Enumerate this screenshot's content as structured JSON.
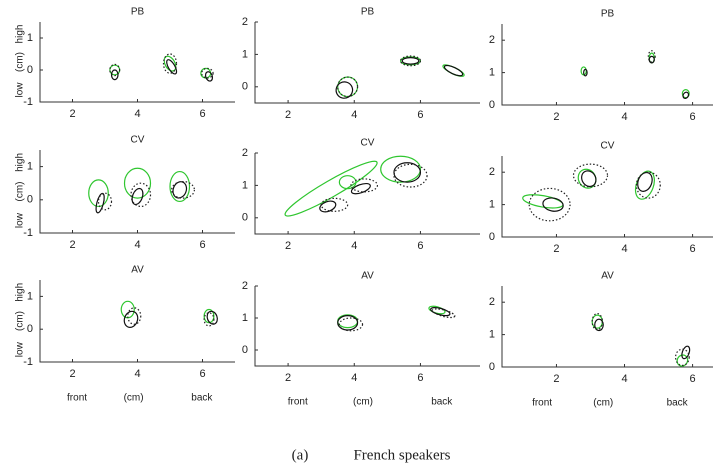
{
  "styles": {
    "green": {
      "color": "#2fc62f",
      "dash": "none"
    },
    "black": {
      "color": "#111111",
      "dash": "none"
    },
    "dotted": {
      "color": "#222222",
      "dash": "1.5 2"
    }
  },
  "caption": {
    "label": "(a)",
    "text": "French speakers"
  },
  "chart_data": [
    {
      "type": "ellipse",
      "title": "PB",
      "ylabel_parts": [
        "high",
        "(cm)",
        "low"
      ],
      "xlim": [
        1,
        7
      ],
      "ylim": [
        -1,
        1.5
      ],
      "xticks": [
        2,
        4,
        6
      ],
      "yticks": [
        -1,
        0,
        1
      ],
      "ellipses": [
        {
          "cx": 3.3,
          "cy": 0.0,
          "w": 0.3,
          "h": 0.3,
          "angle": 0,
          "style": "green"
        },
        {
          "cx": 3.3,
          "cy": -0.15,
          "w": 0.2,
          "h": 0.3,
          "angle": 0,
          "style": "black"
        },
        {
          "cx": 3.3,
          "cy": 0.0,
          "w": 0.3,
          "h": 0.35,
          "angle": 0,
          "style": "dotted"
        },
        {
          "cx": 5.0,
          "cy": 0.2,
          "w": 0.3,
          "h": 0.5,
          "angle": -30,
          "style": "green"
        },
        {
          "cx": 5.05,
          "cy": 0.1,
          "w": 0.2,
          "h": 0.5,
          "angle": -30,
          "style": "black"
        },
        {
          "cx": 5.0,
          "cy": 0.2,
          "w": 0.4,
          "h": 0.6,
          "angle": 0,
          "style": "dotted"
        },
        {
          "cx": 6.1,
          "cy": -0.1,
          "w": 0.3,
          "h": 0.3,
          "angle": 0,
          "style": "green"
        },
        {
          "cx": 6.2,
          "cy": -0.2,
          "w": 0.2,
          "h": 0.3,
          "angle": -20,
          "style": "black"
        },
        {
          "cx": 6.15,
          "cy": -0.1,
          "w": 0.35,
          "h": 0.3,
          "angle": 0,
          "style": "dotted"
        }
      ]
    },
    {
      "type": "ellipse",
      "title": "CV",
      "ylabel_parts": [
        "high",
        "(cm)",
        "low"
      ],
      "xlim": [
        1,
        7
      ],
      "ylim": [
        -1,
        1.5
      ],
      "xticks": [
        2,
        4,
        6
      ],
      "yticks": [
        -1,
        0,
        1
      ],
      "ellipses": [
        {
          "cx": 2.8,
          "cy": 0.2,
          "w": 0.6,
          "h": 0.8,
          "angle": 0,
          "style": "green"
        },
        {
          "cx": 2.85,
          "cy": -0.1,
          "w": 0.2,
          "h": 0.6,
          "angle": 15,
          "style": "black"
        },
        {
          "cx": 3.0,
          "cy": -0.05,
          "w": 0.4,
          "h": 0.5,
          "angle": 0,
          "style": "dotted"
        },
        {
          "cx": 4.0,
          "cy": 0.5,
          "w": 0.8,
          "h": 0.9,
          "angle": 0,
          "style": "green"
        },
        {
          "cx": 4.0,
          "cy": 0.1,
          "w": 0.3,
          "h": 0.5,
          "angle": 20,
          "style": "black"
        },
        {
          "cx": 4.1,
          "cy": 0.15,
          "w": 0.6,
          "h": 0.7,
          "angle": 0,
          "style": "dotted"
        },
        {
          "cx": 5.3,
          "cy": 0.4,
          "w": 0.6,
          "h": 0.9,
          "angle": 0,
          "style": "green"
        },
        {
          "cx": 5.3,
          "cy": 0.3,
          "w": 0.4,
          "h": 0.5,
          "angle": 20,
          "style": "black"
        },
        {
          "cx": 5.4,
          "cy": 0.3,
          "w": 0.7,
          "h": 0.5,
          "angle": 0,
          "style": "dotted"
        }
      ]
    },
    {
      "type": "ellipse",
      "title": "AV",
      "ylabel_parts": [
        "high",
        "(cm)",
        "low"
      ],
      "xlabel_parts": [
        "front",
        "(cm)",
        "back"
      ],
      "xlim": [
        1,
        7
      ],
      "ylim": [
        -1,
        1.5
      ],
      "xticks": [
        2,
        4,
        6
      ],
      "yticks": [
        -1,
        0,
        1
      ],
      "ellipses": [
        {
          "cx": 3.7,
          "cy": 0.6,
          "w": 0.4,
          "h": 0.5,
          "angle": 0,
          "style": "green"
        },
        {
          "cx": 3.8,
          "cy": 0.3,
          "w": 0.4,
          "h": 0.5,
          "angle": 20,
          "style": "black"
        },
        {
          "cx": 3.9,
          "cy": 0.4,
          "w": 0.4,
          "h": 0.5,
          "angle": 0,
          "style": "dotted"
        },
        {
          "cx": 6.2,
          "cy": 0.4,
          "w": 0.3,
          "h": 0.4,
          "angle": 0,
          "style": "green"
        },
        {
          "cx": 6.3,
          "cy": 0.35,
          "w": 0.3,
          "h": 0.4,
          "angle": -20,
          "style": "black"
        },
        {
          "cx": 6.2,
          "cy": 0.3,
          "w": 0.3,
          "h": 0.4,
          "angle": 0,
          "style": "dotted"
        }
      ]
    },
    {
      "type": "ellipse",
      "title": "PB",
      "xlim": [
        1,
        7.8
      ],
      "ylim": [
        -0.5,
        2
      ],
      "xticks": [
        2,
        4,
        6
      ],
      "yticks": [
        0,
        1,
        2
      ],
      "ellipses": [
        {
          "cx": 3.8,
          "cy": 0.0,
          "w": 0.6,
          "h": 0.6,
          "angle": -30,
          "style": "green"
        },
        {
          "cx": 3.7,
          "cy": -0.1,
          "w": 0.5,
          "h": 0.5,
          "angle": -30,
          "style": "black"
        },
        {
          "cx": 3.8,
          "cy": 0.0,
          "w": 0.6,
          "h": 0.6,
          "angle": 0,
          "style": "dotted"
        },
        {
          "cx": 5.7,
          "cy": 0.8,
          "w": 0.6,
          "h": 0.25,
          "angle": 0,
          "style": "green"
        },
        {
          "cx": 5.7,
          "cy": 0.8,
          "w": 0.5,
          "h": 0.2,
          "angle": 0,
          "style": "black"
        },
        {
          "cx": 5.7,
          "cy": 0.8,
          "w": 0.6,
          "h": 0.3,
          "angle": 0,
          "style": "dotted"
        },
        {
          "cx": 7.0,
          "cy": 0.5,
          "w": 0.7,
          "h": 0.2,
          "angle": 25,
          "style": "green"
        },
        {
          "cx": 7.0,
          "cy": 0.5,
          "w": 0.6,
          "h": 0.2,
          "angle": 25,
          "style": "black"
        }
      ]
    },
    {
      "type": "ellipse",
      "title": "CV",
      "xlim": [
        1,
        7.8
      ],
      "ylim": [
        -0.5,
        2
      ],
      "xticks": [
        2,
        4,
        6
      ],
      "yticks": [
        0,
        1,
        2
      ],
      "ellipses": [
        {
          "cx": 3.3,
          "cy": 0.9,
          "w": 3.2,
          "h": 0.5,
          "angle": -30,
          "style": "green"
        },
        {
          "cx": 3.8,
          "cy": 1.1,
          "w": 0.5,
          "h": 0.4,
          "angle": 0,
          "style": "green"
        },
        {
          "cx": 4.2,
          "cy": 0.9,
          "w": 0.6,
          "h": 0.25,
          "angle": -20,
          "style": "black"
        },
        {
          "cx": 4.3,
          "cy": 1.0,
          "w": 0.8,
          "h": 0.4,
          "angle": 0,
          "style": "dotted"
        },
        {
          "cx": 3.2,
          "cy": 0.35,
          "w": 0.5,
          "h": 0.3,
          "angle": -20,
          "style": "black"
        },
        {
          "cx": 3.4,
          "cy": 0.4,
          "w": 0.8,
          "h": 0.4,
          "angle": 0,
          "style": "dotted"
        },
        {
          "cx": 5.4,
          "cy": 1.5,
          "w": 1.2,
          "h": 0.8,
          "angle": 0,
          "style": "green"
        },
        {
          "cx": 5.6,
          "cy": 1.4,
          "w": 0.8,
          "h": 0.6,
          "angle": 0,
          "style": "black"
        },
        {
          "cx": 5.7,
          "cy": 1.3,
          "w": 1.0,
          "h": 0.7,
          "angle": 0,
          "style": "dotted"
        }
      ]
    },
    {
      "type": "ellipse",
      "title": "AV",
      "xlabel_parts": [
        "front",
        "(cm)",
        "back"
      ],
      "xlim": [
        1,
        7.8
      ],
      "ylim": [
        -0.5,
        2
      ],
      "xticks": [
        2,
        4,
        6
      ],
      "yticks": [
        0,
        1,
        2
      ],
      "ellipses": [
        {
          "cx": 3.8,
          "cy": 0.9,
          "w": 0.6,
          "h": 0.4,
          "angle": 0,
          "style": "green"
        },
        {
          "cx": 3.8,
          "cy": 0.85,
          "w": 0.6,
          "h": 0.45,
          "angle": 0,
          "style": "black"
        },
        {
          "cx": 3.9,
          "cy": 0.8,
          "w": 0.7,
          "h": 0.4,
          "angle": 0,
          "style": "dotted"
        },
        {
          "cx": 6.5,
          "cy": 1.25,
          "w": 0.5,
          "h": 0.2,
          "angle": 15,
          "style": "green"
        },
        {
          "cx": 6.6,
          "cy": 1.2,
          "w": 0.6,
          "h": 0.2,
          "angle": 15,
          "style": "black"
        },
        {
          "cx": 6.7,
          "cy": 1.15,
          "w": 0.7,
          "h": 0.2,
          "angle": 15,
          "style": "dotted"
        }
      ]
    },
    {
      "type": "ellipse",
      "title": "PB",
      "xlim": [
        0.4,
        6.6
      ],
      "ylim": [
        0,
        2.5
      ],
      "xticks": [
        2,
        4,
        6
      ],
      "yticks": [
        0,
        1,
        2
      ],
      "ellipses": [
        {
          "cx": 2.8,
          "cy": 1.05,
          "w": 0.15,
          "h": 0.25,
          "angle": 0,
          "style": "green"
        },
        {
          "cx": 2.85,
          "cy": 1.0,
          "w": 0.1,
          "h": 0.2,
          "angle": 0,
          "style": "black"
        },
        {
          "cx": 4.8,
          "cy": 1.45,
          "w": 0.15,
          "h": 0.3,
          "angle": 0,
          "style": "green"
        },
        {
          "cx": 4.8,
          "cy": 1.4,
          "w": 0.15,
          "h": 0.2,
          "angle": 0,
          "style": "black"
        },
        {
          "cx": 4.8,
          "cy": 1.5,
          "w": 0.2,
          "h": 0.35,
          "angle": 0,
          "style": "dotted"
        },
        {
          "cx": 5.8,
          "cy": 0.35,
          "w": 0.2,
          "h": 0.25,
          "angle": 0,
          "style": "green"
        },
        {
          "cx": 5.8,
          "cy": 0.3,
          "w": 0.15,
          "h": 0.2,
          "angle": 30,
          "style": "black"
        }
      ]
    },
    {
      "type": "ellipse",
      "title": "CV",
      "xlim": [
        0.4,
        6.6
      ],
      "ylim": [
        0,
        2.5
      ],
      "xticks": [
        2,
        4,
        6
      ],
      "yticks": [
        0,
        1,
        2
      ],
      "ellipses": [
        {
          "cx": 1.6,
          "cy": 1.1,
          "w": 1.2,
          "h": 0.35,
          "angle": 10,
          "style": "green"
        },
        {
          "cx": 1.9,
          "cy": 1.0,
          "w": 0.6,
          "h": 0.4,
          "angle": 10,
          "style": "black"
        },
        {
          "cx": 1.8,
          "cy": 1.0,
          "w": 1.2,
          "h": 1.0,
          "angle": 0,
          "style": "dotted"
        },
        {
          "cx": 2.9,
          "cy": 1.8,
          "w": 0.5,
          "h": 0.6,
          "angle": -30,
          "style": "green"
        },
        {
          "cx": 2.95,
          "cy": 1.8,
          "w": 0.4,
          "h": 0.5,
          "angle": -30,
          "style": "black"
        },
        {
          "cx": 3.0,
          "cy": 1.9,
          "w": 1.0,
          "h": 0.7,
          "angle": 0,
          "style": "dotted"
        },
        {
          "cx": 4.6,
          "cy": 1.6,
          "w": 0.5,
          "h": 0.9,
          "angle": 20,
          "style": "green"
        },
        {
          "cx": 4.6,
          "cy": 1.7,
          "w": 0.4,
          "h": 0.6,
          "angle": 20,
          "style": "black"
        },
        {
          "cx": 4.7,
          "cy": 1.6,
          "w": 0.7,
          "h": 0.8,
          "angle": 0,
          "style": "dotted"
        }
      ]
    },
    {
      "type": "ellipse",
      "title": "AV",
      "xlabel_parts": [
        "front",
        "(cm)",
        "back"
      ],
      "xlim": [
        0.4,
        6.6
      ],
      "ylim": [
        0,
        2.5
      ],
      "xticks": [
        2,
        4,
        6
      ],
      "yticks": [
        0,
        1,
        2
      ],
      "ellipses": [
        {
          "cx": 3.2,
          "cy": 1.4,
          "w": 0.3,
          "h": 0.4,
          "angle": 0,
          "style": "green"
        },
        {
          "cx": 3.25,
          "cy": 1.3,
          "w": 0.25,
          "h": 0.35,
          "angle": 0,
          "style": "black"
        },
        {
          "cx": 3.2,
          "cy": 1.4,
          "w": 0.3,
          "h": 0.5,
          "angle": 0,
          "style": "dotted"
        },
        {
          "cx": 5.7,
          "cy": 0.2,
          "w": 0.3,
          "h": 0.35,
          "angle": 30,
          "style": "green"
        },
        {
          "cx": 5.8,
          "cy": 0.45,
          "w": 0.2,
          "h": 0.4,
          "angle": 20,
          "style": "black"
        },
        {
          "cx": 5.7,
          "cy": 0.3,
          "w": 0.4,
          "h": 0.5,
          "angle": 0,
          "style": "dotted"
        }
      ]
    }
  ]
}
